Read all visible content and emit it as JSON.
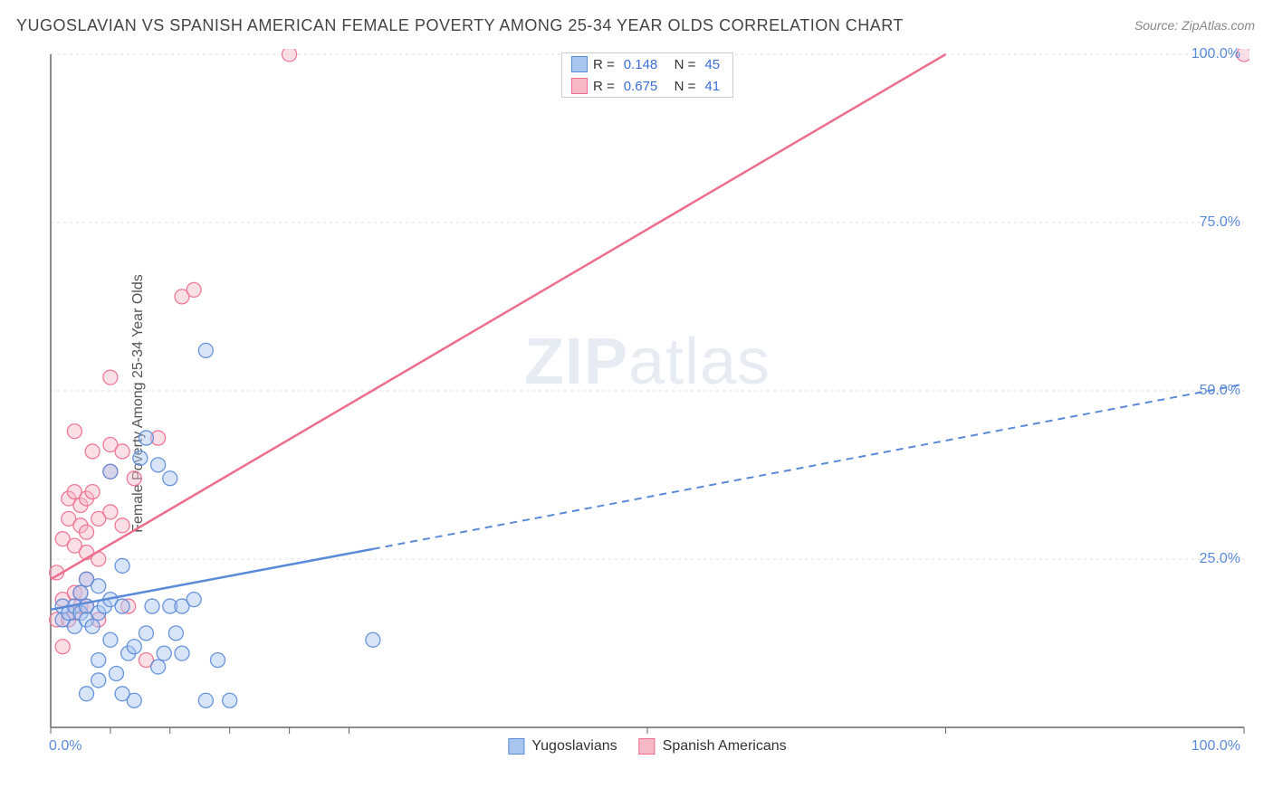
{
  "title": "YUGOSLAVIAN VS SPANISH AMERICAN FEMALE POVERTY AMONG 25-34 YEAR OLDS CORRELATION CHART",
  "source": "Source: ZipAtlas.com",
  "ylabel": "Female Poverty Among 25-34 Year Olds",
  "watermark_a": "ZIP",
  "watermark_b": "atlas",
  "chart": {
    "type": "scatter-correlation",
    "background_color": "#ffffff",
    "grid_color": "#dcdcdc",
    "axis_color": "#666666",
    "tick_color": "#5a8ad8",
    "xlim": [
      0,
      100
    ],
    "ylim": [
      0,
      100
    ],
    "ytick_positions": [
      25,
      50,
      75,
      100
    ],
    "ytick_labels": [
      "25.0%",
      "50.0%",
      "75.0%",
      "100.0%"
    ],
    "xtick_0": "0.0%",
    "xtick_100": "100.0%",
    "x_minor_ticks": [
      0,
      5,
      10,
      15,
      20,
      25,
      50,
      75,
      100
    ],
    "marker_radius": 8,
    "marker_opacity": 0.45,
    "line_width_solid": 2.5,
    "line_width_dash": 2,
    "dash_pattern": "8,6",
    "series": {
      "yugoslavians": {
        "label": "Yugoslavians",
        "color_stroke": "#5a8ad8",
        "color_fill": "#a9c6ef",
        "R": "0.148",
        "N": "45",
        "trend": {
          "start": [
            0,
            17.5
          ],
          "solid_end": [
            27,
            26.5
          ],
          "dash_end": [
            100,
            51
          ]
        },
        "points": [
          [
            1,
            16
          ],
          [
            1,
            18
          ],
          [
            1.5,
            17
          ],
          [
            2,
            18
          ],
          [
            2,
            15
          ],
          [
            2.5,
            20
          ],
          [
            2.5,
            17
          ],
          [
            3,
            18
          ],
          [
            3,
            16
          ],
          [
            3,
            22
          ],
          [
            3.5,
            15
          ],
          [
            4,
            17
          ],
          [
            4,
            21
          ],
          [
            4,
            10
          ],
          [
            4.5,
            18
          ],
          [
            5,
            13
          ],
          [
            5,
            19
          ],
          [
            5,
            38
          ],
          [
            5.5,
            8
          ],
          [
            6,
            18
          ],
          [
            6,
            24
          ],
          [
            6.5,
            11
          ],
          [
            7,
            12
          ],
          [
            7,
            4
          ],
          [
            7.5,
            40
          ],
          [
            8,
            14
          ],
          [
            8,
            43
          ],
          [
            8.5,
            18
          ],
          [
            9,
            39
          ],
          [
            9,
            9
          ],
          [
            9.5,
            11
          ],
          [
            10,
            18
          ],
          [
            10,
            37
          ],
          [
            10.5,
            14
          ],
          [
            11,
            18
          ],
          [
            11,
            11
          ],
          [
            12,
            19
          ],
          [
            13,
            4
          ],
          [
            13,
            56
          ],
          [
            14,
            10
          ],
          [
            15,
            4
          ],
          [
            6,
            5
          ],
          [
            3,
            5
          ],
          [
            4,
            7
          ],
          [
            27,
            13
          ]
        ]
      },
      "spanish_americans": {
        "label": "Spanish Americans",
        "color_stroke": "#ec6e8c",
        "color_fill": "#f6b9c8",
        "R": "0.675",
        "N": "41",
        "trend": {
          "start": [
            0,
            22
          ],
          "solid_end": [
            75,
            100
          ],
          "dash_end": null
        },
        "points": [
          [
            0.5,
            16
          ],
          [
            0.5,
            23
          ],
          [
            1,
            12
          ],
          [
            1,
            19
          ],
          [
            1,
            28
          ],
          [
            1.5,
            16
          ],
          [
            1.5,
            31
          ],
          [
            1.5,
            34
          ],
          [
            2,
            17
          ],
          [
            2,
            20
          ],
          [
            2,
            27
          ],
          [
            2,
            35
          ],
          [
            2,
            44
          ],
          [
            2.5,
            18
          ],
          [
            2.5,
            20
          ],
          [
            2.5,
            30
          ],
          [
            2.5,
            33
          ],
          [
            3,
            18
          ],
          [
            3,
            22
          ],
          [
            3,
            26
          ],
          [
            3,
            29
          ],
          [
            3,
            34
          ],
          [
            3.5,
            35
          ],
          [
            3.5,
            41
          ],
          [
            4,
            16
          ],
          [
            4,
            25
          ],
          [
            4,
            31
          ],
          [
            5,
            32
          ],
          [
            5,
            38
          ],
          [
            5,
            42
          ],
          [
            5,
            52
          ],
          [
            6,
            30
          ],
          [
            6,
            41
          ],
          [
            6.5,
            18
          ],
          [
            7,
            37
          ],
          [
            9,
            43
          ],
          [
            11,
            64
          ],
          [
            12,
            65
          ],
          [
            8,
            10
          ],
          [
            20,
            100
          ],
          [
            100,
            100
          ]
        ]
      }
    }
  }
}
